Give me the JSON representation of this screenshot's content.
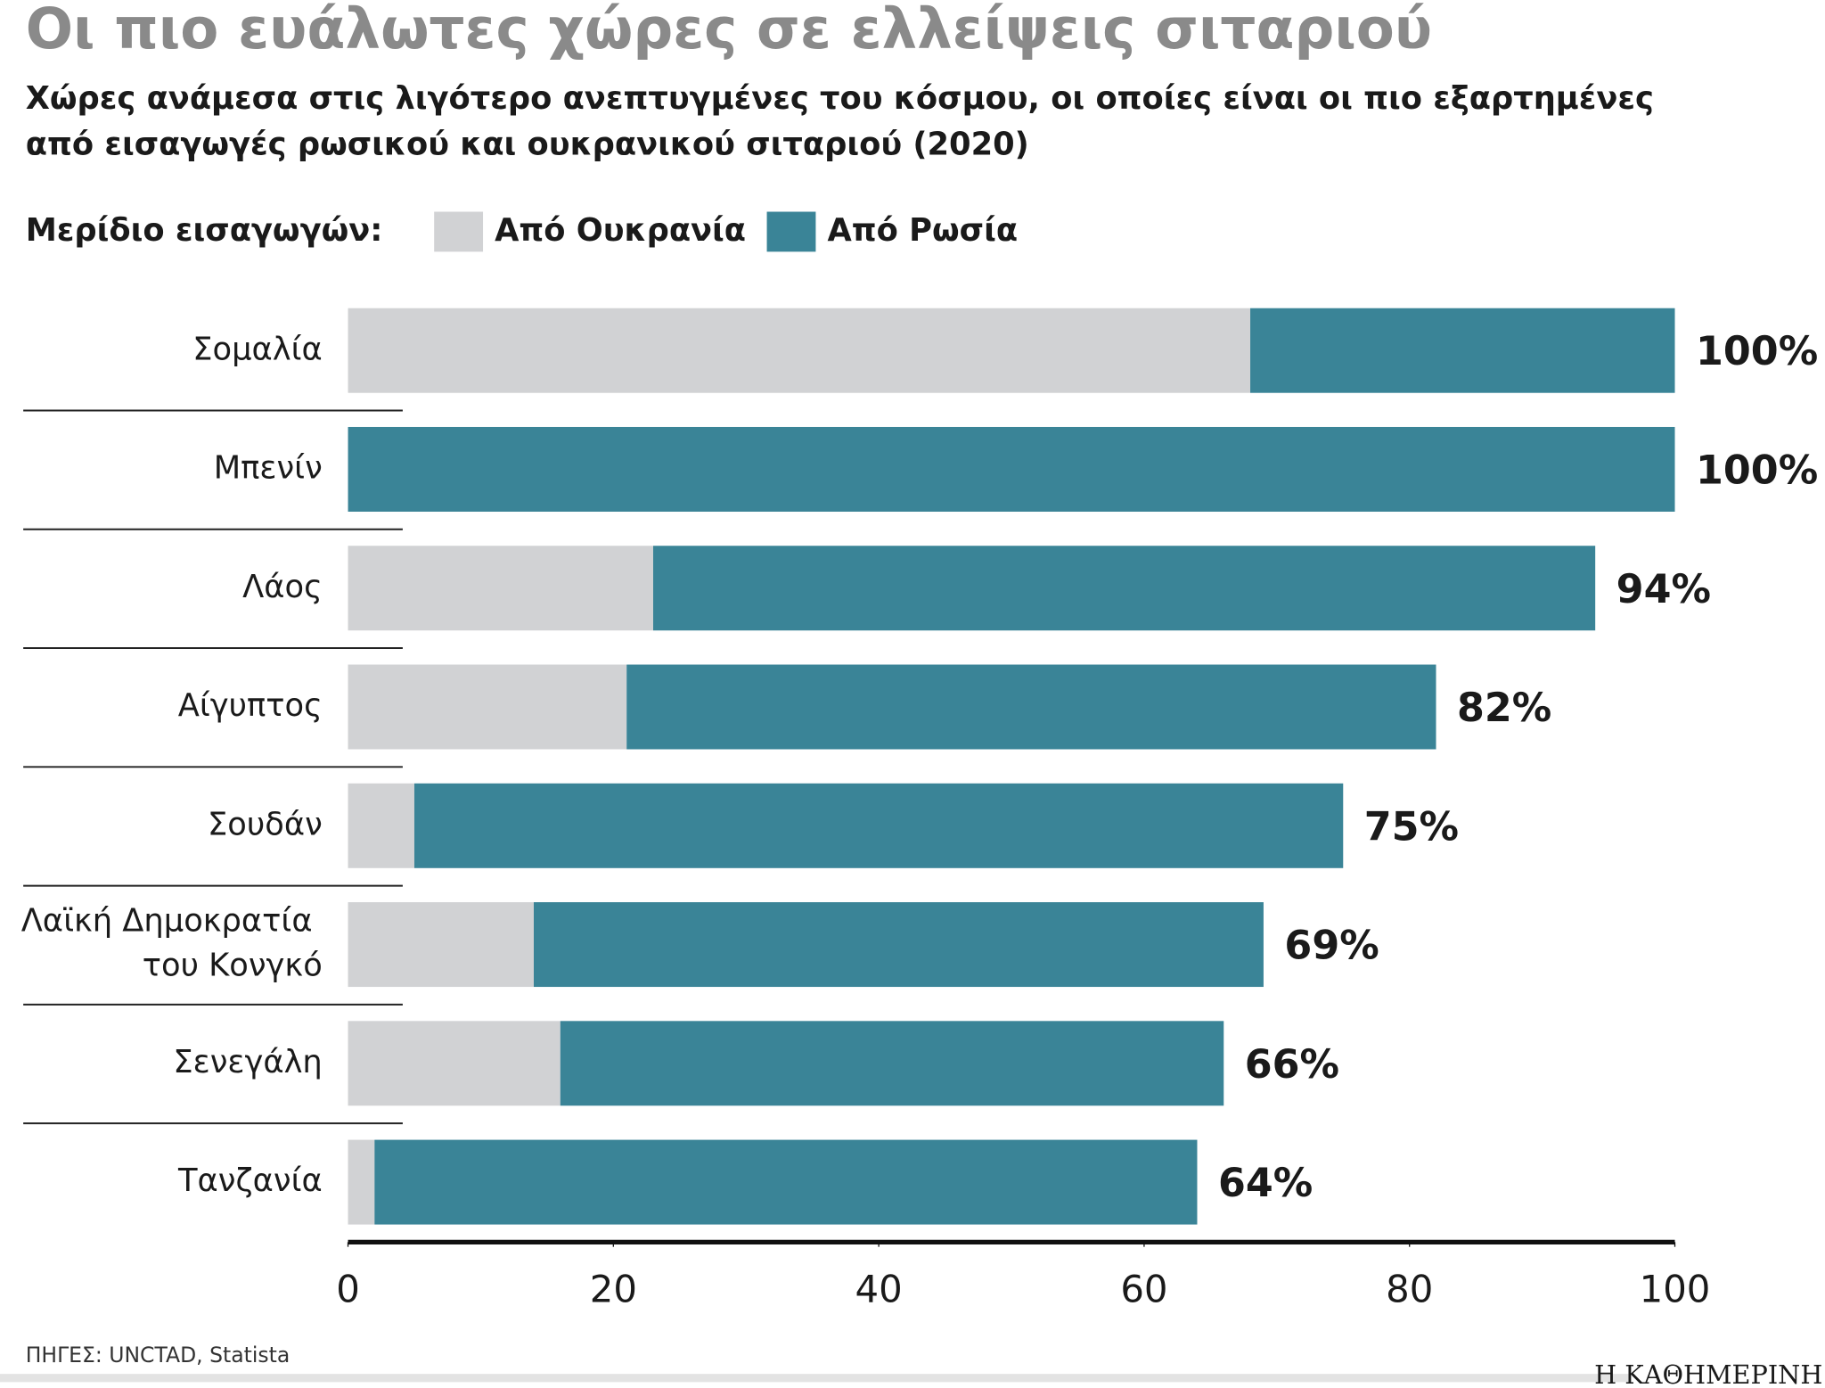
{
  "chart_data": {
    "type": "stacked-bar-horizontal",
    "title": "Οι πιο ευάλωτες χώρες σε ελλείψεις σιταριού",
    "subtitle": [
      "Χώρες ανάμεσα στις λιγότερο ανεπτυγμένες του κόσμου, οι οποίες είναι οι πιο εξαρτημένες",
      "από εισαγωγές ρωσικού και ουκρανικού σιταριού (2020)"
    ],
    "legend_title": "Μερίδιο εισαγωγών:",
    "categories": [
      "Σομαλία",
      "Μπενίν",
      "Λάος",
      "Αίγυπτος",
      "Σουδάν",
      "Λαϊκή Δημοκρατία του Κονγκό",
      "Σενεγάλη",
      "Τανζανία"
    ],
    "series": [
      {
        "name": "Από Ουκρανία",
        "color": "#d1d2d4",
        "values": [
          68,
          0,
          23,
          21,
          5,
          14,
          16,
          2
        ]
      },
      {
        "name": "Από Ρωσία",
        "color": "#3a8497",
        "values": [
          32,
          100,
          71,
          61,
          70,
          55,
          50,
          62
        ]
      }
    ],
    "totals": [
      100,
      100,
      94,
      82,
      75,
      69,
      66,
      64
    ],
    "total_labels": [
      "100%",
      "100%",
      "94%",
      "82%",
      "75%",
      "69%",
      "66%",
      "64%"
    ],
    "xlim": [
      0,
      100
    ],
    "xticks": [
      0,
      20,
      40,
      60,
      80,
      100
    ],
    "source": "ΠΗΓΕΣ: UNCTAD, Statista",
    "publisher": "Η ΚΑΘΗΜΕΡΙΝΗ"
  }
}
